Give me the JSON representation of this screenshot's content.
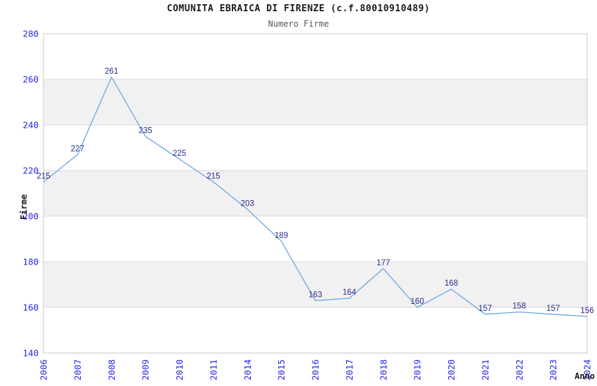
{
  "chart_data": {
    "type": "line",
    "title": "COMUNITA EBRAICA DI FIRENZE (c.f.80010910489)",
    "subtitle": "Numero Firme",
    "xlabel": "Anno",
    "ylabel": "Firme",
    "categories": [
      "2006",
      "2007",
      "2008",
      "2009",
      "2010",
      "2011",
      "2014",
      "2015",
      "2016",
      "2017",
      "2018",
      "2019",
      "2020",
      "2021",
      "2022",
      "2023",
      "2024"
    ],
    "values": [
      215,
      227,
      261,
      235,
      225,
      215,
      203,
      189,
      163,
      164,
      177,
      160,
      168,
      157,
      158,
      157,
      156
    ],
    "ylim": [
      140,
      280
    ],
    "ytick_step": 20,
    "yticks": [
      140,
      160,
      180,
      200,
      220,
      240,
      260,
      280
    ],
    "grid": "horizontal-alternating-bands",
    "legend": "none",
    "data_labels": "shown-above-points",
    "x_tick_rotation_deg": -90,
    "colors": {
      "line": "#6da6e3",
      "data_label": "#2b2b8f",
      "tick_label": "#2727e8",
      "band": "#f1f1f1",
      "gridline": "#d9d9d9",
      "plot_border": "#c9c9c9",
      "title": "#1a1a1a",
      "subtitle": "#575757",
      "axis_title": "#1a1a1a",
      "background": "#ffffff"
    }
  }
}
